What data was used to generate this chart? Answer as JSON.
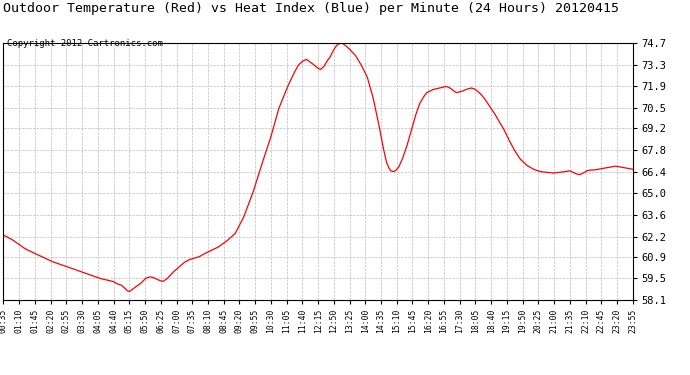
{
  "title": "Outdoor Temperature (Red) vs Heat Index (Blue) per Minute (24 Hours) 20120415",
  "copyright": "Copyright 2012 Cartronics.com",
  "y_ticks": [
    58.1,
    59.5,
    60.9,
    62.2,
    63.6,
    65.0,
    66.4,
    67.8,
    69.2,
    70.5,
    71.9,
    73.3,
    74.7
  ],
  "y_min": 58.1,
  "y_max": 74.7,
  "x_labels": [
    "00:35",
    "01:10",
    "01:45",
    "02:20",
    "02:55",
    "03:30",
    "04:05",
    "04:40",
    "05:15",
    "05:50",
    "06:25",
    "07:00",
    "07:35",
    "08:10",
    "08:45",
    "09:20",
    "09:55",
    "10:30",
    "11:05",
    "11:40",
    "12:15",
    "12:50",
    "13:25",
    "14:00",
    "14:35",
    "15:10",
    "15:45",
    "16:20",
    "16:55",
    "17:30",
    "18:05",
    "18:40",
    "19:15",
    "19:50",
    "20:25",
    "21:00",
    "21:35",
    "22:10",
    "22:45",
    "23:20",
    "23:55"
  ],
  "line_color": "#ff0000",
  "background_color": "#ffffff",
  "grid_color": "#bbbbbb",
  "title_fontsize": 9.5,
  "copyright_fontsize": 6.5,
  "ctrl_points": [
    [
      0,
      62.3
    ],
    [
      20,
      62.0
    ],
    [
      50,
      61.4
    ],
    [
      80,
      61.0
    ],
    [
      110,
      60.6
    ],
    [
      140,
      60.3
    ],
    [
      170,
      60.0
    ],
    [
      200,
      59.7
    ],
    [
      220,
      59.5
    ],
    [
      235,
      59.4
    ],
    [
      250,
      59.3
    ],
    [
      260,
      59.15
    ],
    [
      270,
      59.05
    ],
    [
      278,
      58.85
    ],
    [
      283,
      58.7
    ],
    [
      288,
      58.65
    ],
    [
      295,
      58.8
    ],
    [
      305,
      59.0
    ],
    [
      315,
      59.2
    ],
    [
      325,
      59.5
    ],
    [
      335,
      59.6
    ],
    [
      343,
      59.55
    ],
    [
      350,
      59.45
    ],
    [
      358,
      59.35
    ],
    [
      365,
      59.3
    ],
    [
      375,
      59.5
    ],
    [
      388,
      59.9
    ],
    [
      400,
      60.2
    ],
    [
      412,
      60.5
    ],
    [
      424,
      60.7
    ],
    [
      436,
      60.8
    ],
    [
      448,
      60.9
    ],
    [
      460,
      61.1
    ],
    [
      475,
      61.3
    ],
    [
      490,
      61.5
    ],
    [
      510,
      61.9
    ],
    [
      530,
      62.4
    ],
    [
      550,
      63.5
    ],
    [
      570,
      65.0
    ],
    [
      590,
      66.8
    ],
    [
      610,
      68.5
    ],
    [
      630,
      70.5
    ],
    [
      650,
      71.9
    ],
    [
      665,
      72.8
    ],
    [
      675,
      73.3
    ],
    [
      685,
      73.55
    ],
    [
      693,
      73.65
    ],
    [
      700,
      73.5
    ],
    [
      710,
      73.3
    ],
    [
      718,
      73.1
    ],
    [
      725,
      73.0
    ],
    [
      733,
      73.2
    ],
    [
      740,
      73.55
    ],
    [
      747,
      73.8
    ],
    [
      752,
      74.1
    ],
    [
      757,
      74.35
    ],
    [
      762,
      74.55
    ],
    [
      767,
      74.65
    ],
    [
      772,
      74.7
    ],
    [
      777,
      74.65
    ],
    [
      782,
      74.55
    ],
    [
      788,
      74.4
    ],
    [
      795,
      74.2
    ],
    [
      805,
      73.9
    ],
    [
      818,
      73.3
    ],
    [
      832,
      72.5
    ],
    [
      845,
      71.2
    ],
    [
      858,
      69.5
    ],
    [
      868,
      68.0
    ],
    [
      876,
      67.0
    ],
    [
      882,
      66.6
    ],
    [
      886,
      66.45
    ],
    [
      890,
      66.4
    ],
    [
      894,
      66.42
    ],
    [
      898,
      66.5
    ],
    [
      904,
      66.7
    ],
    [
      912,
      67.2
    ],
    [
      922,
      68.0
    ],
    [
      932,
      69.0
    ],
    [
      942,
      70.0
    ],
    [
      952,
      70.8
    ],
    [
      960,
      71.2
    ],
    [
      968,
      71.5
    ],
    [
      975,
      71.6
    ],
    [
      982,
      71.7
    ],
    [
      990,
      71.75
    ],
    [
      998,
      71.8
    ],
    [
      1005,
      71.85
    ],
    [
      1012,
      71.9
    ],
    [
      1018,
      71.85
    ],
    [
      1024,
      71.75
    ],
    [
      1030,
      71.6
    ],
    [
      1036,
      71.5
    ],
    [
      1043,
      71.55
    ],
    [
      1050,
      71.6
    ],
    [
      1057,
      71.7
    ],
    [
      1064,
      71.75
    ],
    [
      1070,
      71.8
    ],
    [
      1076,
      71.75
    ],
    [
      1082,
      71.65
    ],
    [
      1088,
      71.5
    ],
    [
      1095,
      71.3
    ],
    [
      1103,
      71.0
    ],
    [
      1112,
      70.6
    ],
    [
      1122,
      70.2
    ],
    [
      1132,
      69.7
    ],
    [
      1143,
      69.2
    ],
    [
      1155,
      68.5
    ],
    [
      1168,
      67.8
    ],
    [
      1182,
      67.2
    ],
    [
      1197,
      66.8
    ],
    [
      1212,
      66.55
    ],
    [
      1227,
      66.4
    ],
    [
      1242,
      66.35
    ],
    [
      1257,
      66.3
    ],
    [
      1272,
      66.35
    ],
    [
      1285,
      66.4
    ],
    [
      1295,
      66.45
    ],
    [
      1303,
      66.35
    ],
    [
      1310,
      66.25
    ],
    [
      1318,
      66.2
    ],
    [
      1326,
      66.3
    ],
    [
      1334,
      66.45
    ],
    [
      1342,
      66.5
    ],
    [
      1350,
      66.5
    ],
    [
      1360,
      66.55
    ],
    [
      1370,
      66.6
    ],
    [
      1380,
      66.65
    ],
    [
      1390,
      66.7
    ],
    [
      1400,
      66.75
    ],
    [
      1410,
      66.7
    ],
    [
      1420,
      66.65
    ],
    [
      1430,
      66.6
    ],
    [
      1439,
      66.55
    ]
  ]
}
